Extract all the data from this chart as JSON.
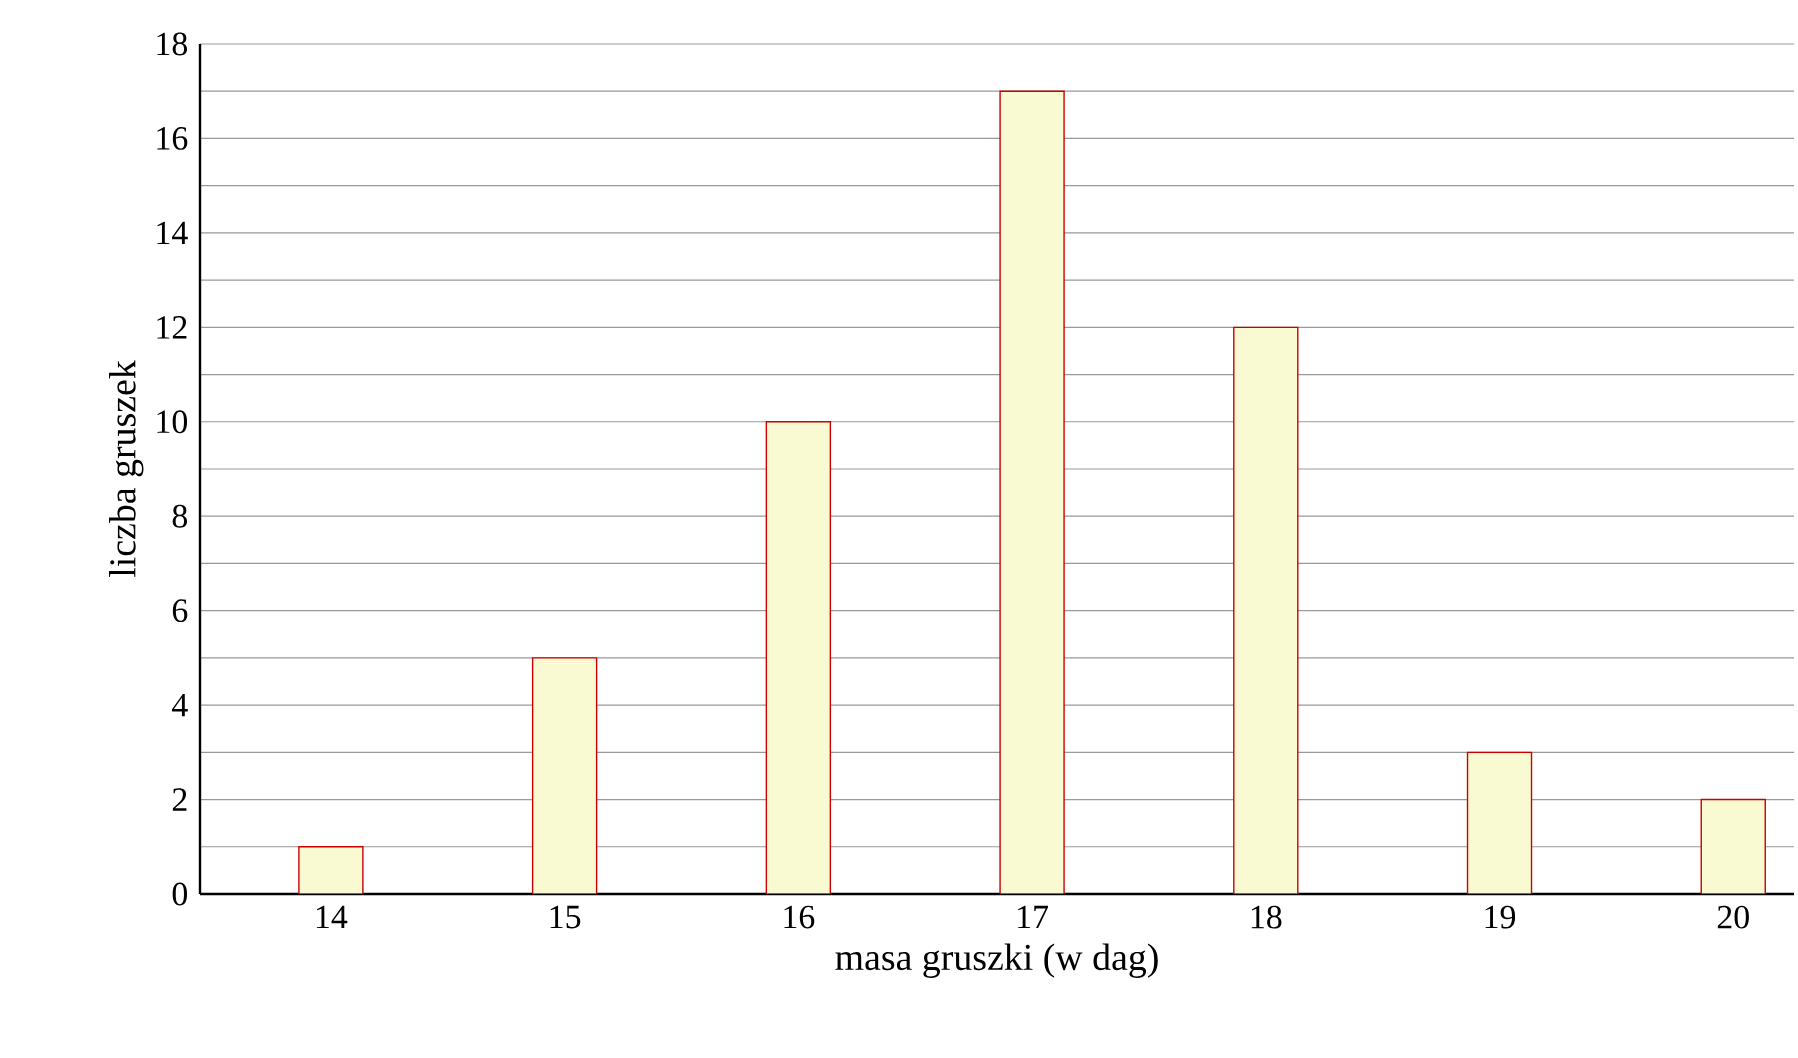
{
  "chart_data": {
    "type": "bar",
    "xlabel": "masa gruszki (w dag)",
    "ylabel": "liczba gruszek",
    "categories": [
      "14",
      "15",
      "16",
      "17",
      "18",
      "19",
      "20"
    ],
    "values": [
      1,
      5,
      10,
      17,
      12,
      3,
      2
    ],
    "color": "#fafad2",
    "ylim": [
      0,
      18
    ],
    "yticks": [
      0,
      {
        "value": 1,
        "label": null
      },
      2,
      {
        "value": 3,
        "label": null
      },
      4,
      {
        "value": 5,
        "label": null
      },
      6,
      {
        "value": 7,
        "label": null
      },
      8,
      {
        "value": 9,
        "label": null
      },
      10,
      {
        "value": 11,
        "label": null
      },
      12,
      {
        "value": 13,
        "label": null
      },
      14,
      {
        "value": 15,
        "label": null
      },
      16,
      {
        "value": 17,
        "label": null
      },
      18
    ],
    "grid": "y"
  }
}
